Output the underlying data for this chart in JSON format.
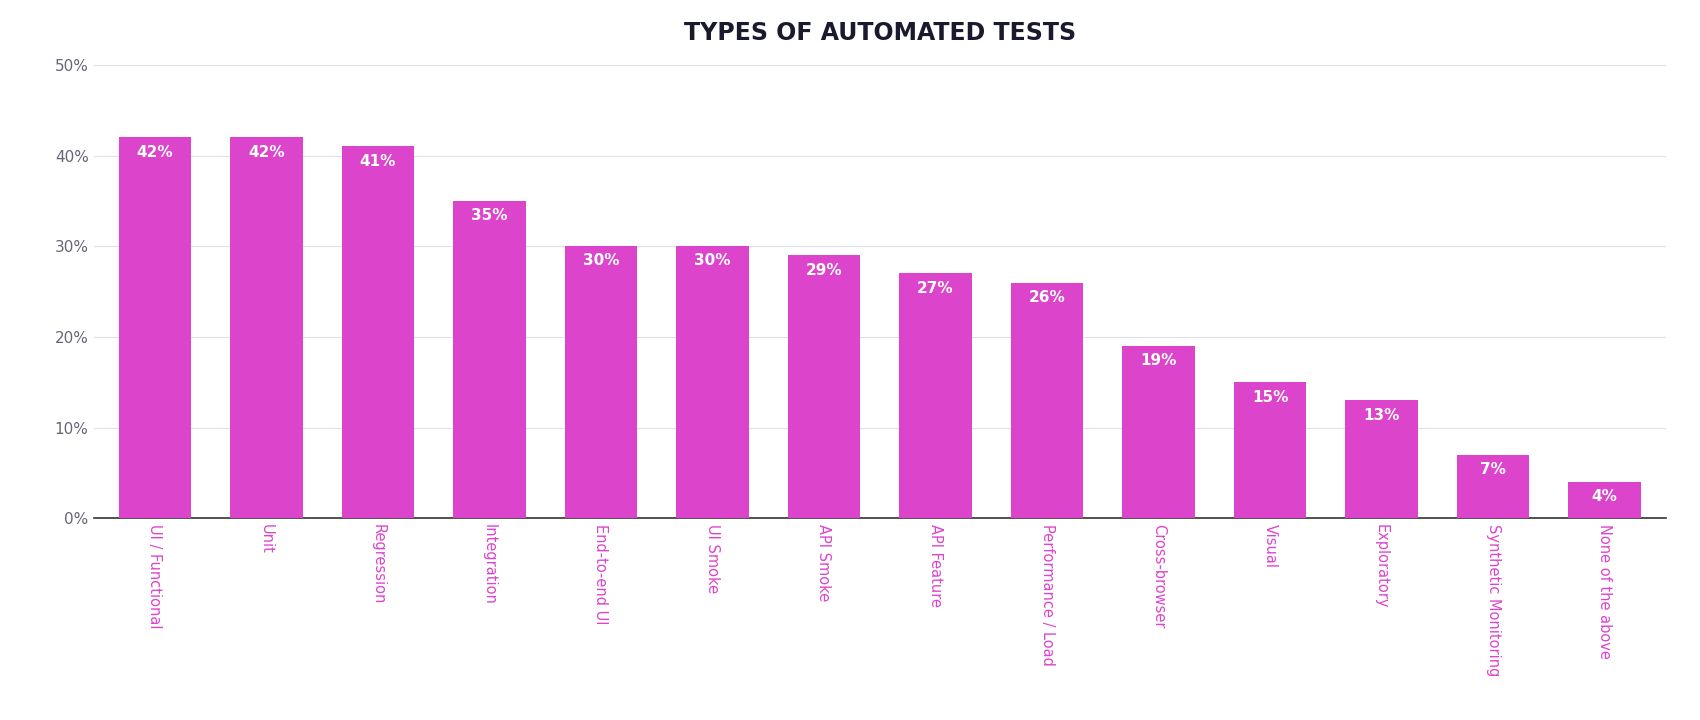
{
  "title": "TYPES OF AUTOMATED TESTS",
  "categories": [
    "UI / Functional",
    "Unit",
    "Regression",
    "Integration",
    "End-to-end UI",
    "UI Smoke",
    "API Smoke",
    "API Feature",
    "Performance / Load",
    "Cross-browser",
    "Visual",
    "Exploratory",
    "Synthetic Monitoring",
    "None of the above"
  ],
  "values": [
    42,
    42,
    41,
    35,
    30,
    30,
    29,
    27,
    26,
    19,
    15,
    13,
    7,
    4
  ],
  "bar_color": "#dd44cc",
  "label_color": "#ffffff",
  "title_color": "#1a1a2e",
  "axis_label_color": "#666677",
  "grid_color": "#e0e0e8",
  "background_color": "#ffffff",
  "ylim": [
    0,
    50
  ],
  "yticks": [
    0,
    10,
    20,
    30,
    40,
    50
  ],
  "ytick_labels": [
    "0%",
    "10%",
    "20%",
    "30%",
    "40%",
    "50%"
  ],
  "title_fontsize": 17,
  "bar_label_fontsize": 11,
  "tick_label_fontsize": 10.5,
  "axis_tick_fontsize": 11
}
